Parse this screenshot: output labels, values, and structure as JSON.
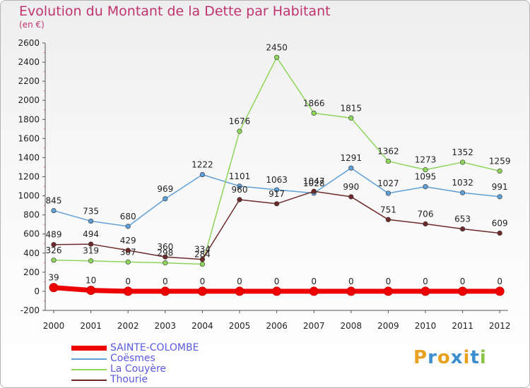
{
  "title": "Evolution du Montant de la Dette par Habitant",
  "subtitle": "(en €)",
  "logo": [
    "P",
    "r",
    "o",
    "x",
    "i",
    "t",
    "i"
  ],
  "logo_colors": [
    "#e8a020",
    "#3b8fd0",
    "#e8a020",
    "#3b8fd0",
    "#e8a020",
    "#3b8fd0",
    "#8bc34a"
  ],
  "chart_data": {
    "type": "line",
    "title": "Evolution du Montant de la Dette par Habitant",
    "ylabel": "(en €)",
    "xlabel": "",
    "x": [
      "2000",
      "2001",
      "2002",
      "2003",
      "2004",
      "2005",
      "2006",
      "2007",
      "2008",
      "2009",
      "2010",
      "2011",
      "2012"
    ],
    "ylim": [
      -200,
      2600
    ],
    "yticks": [
      -200,
      0,
      200,
      400,
      600,
      800,
      1000,
      1200,
      1400,
      1600,
      1800,
      2000,
      2200,
      2400,
      2600
    ],
    "grid": false,
    "legend": "bottom-left",
    "series": [
      {
        "name": "SAINTE-COLOMBE",
        "color": "#ee0000",
        "values": [
          39,
          10,
          0,
          0,
          0,
          0,
          0,
          0,
          0,
          0,
          0,
          0,
          0
        ]
      },
      {
        "name": "Coësmes",
        "color": "#5f9fd6",
        "values": [
          845,
          735,
          680,
          969,
          1222,
          1101,
          1063,
          1028,
          1291,
          1027,
          1095,
          1032,
          991
        ]
      },
      {
        "name": "La Couyère",
        "color": "#8ed55a",
        "values": [
          326,
          319,
          307,
          298,
          284,
          1676,
          2450,
          1866,
          1815,
          1362,
          1273,
          1352,
          1259
        ]
      },
      {
        "name": "Thourie",
        "color": "#6e2a2a",
        "values": [
          489,
          494,
          429,
          360,
          334,
          960,
          917,
          1047,
          990,
          751,
          706,
          653,
          609
        ]
      }
    ]
  }
}
